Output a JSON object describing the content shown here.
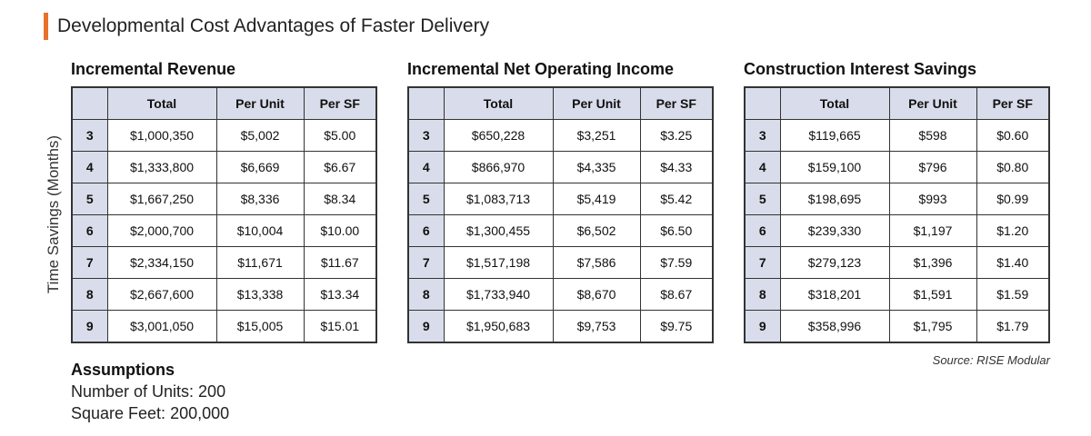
{
  "page": {
    "title": "Developmental Cost Advantages of Faster Delivery",
    "y_axis_label": "Time Savings (Months)",
    "source": "Source: RISE Modular",
    "accent_color": "#e8722a",
    "header_fill_color": "#d9dcea"
  },
  "tables": [
    {
      "heading": "Incremental Revenue",
      "columns": [
        "",
        "Total",
        "Per Unit",
        "Per SF"
      ],
      "rows": [
        [
          "3",
          "$1,000,350",
          "$5,002",
          "$5.00"
        ],
        [
          "4",
          "$1,333,800",
          "$6,669",
          "$6.67"
        ],
        [
          "5",
          "$1,667,250",
          "$8,336",
          "$8.34"
        ],
        [
          "6",
          "$2,000,700",
          "$10,004",
          "$10.00"
        ],
        [
          "7",
          "$2,334,150",
          "$11,671",
          "$11.67"
        ],
        [
          "8",
          "$2,667,600",
          "$13,338",
          "$13.34"
        ],
        [
          "9",
          "$3,001,050",
          "$15,005",
          "$15.01"
        ]
      ]
    },
    {
      "heading": "Incremental Net Operating Income",
      "columns": [
        "",
        "Total",
        "Per Unit",
        "Per SF"
      ],
      "rows": [
        [
          "3",
          "$650,228",
          "$3,251",
          "$3.25"
        ],
        [
          "4",
          "$866,970",
          "$4,335",
          "$4.33"
        ],
        [
          "5",
          "$1,083,713",
          "$5,419",
          "$5.42"
        ],
        [
          "6",
          "$1,300,455",
          "$6,502",
          "$6.50"
        ],
        [
          "7",
          "$1,517,198",
          "$7,586",
          "$7.59"
        ],
        [
          "8",
          "$1,733,940",
          "$8,670",
          "$8.67"
        ],
        [
          "9",
          "$1,950,683",
          "$9,753",
          "$9.75"
        ]
      ]
    },
    {
      "heading": "Construction Interest Savings",
      "columns": [
        "",
        "Total",
        "Per Unit",
        "Per SF"
      ],
      "rows": [
        [
          "3",
          "$119,665",
          "$598",
          "$0.60"
        ],
        [
          "4",
          "$159,100",
          "$796",
          "$0.80"
        ],
        [
          "5",
          "$198,695",
          "$993",
          "$0.99"
        ],
        [
          "6",
          "$239,330",
          "$1,197",
          "$1.20"
        ],
        [
          "7",
          "$279,123",
          "$1,396",
          "$1.40"
        ],
        [
          "8",
          "$318,201",
          "$1,591",
          "$1.59"
        ],
        [
          "9",
          "$358,996",
          "$1,795",
          "$1.79"
        ]
      ]
    }
  ],
  "assumptions": {
    "heading": "Assumptions",
    "lines": [
      "Number of Units: 200",
      "Square Feet: 200,000"
    ]
  }
}
